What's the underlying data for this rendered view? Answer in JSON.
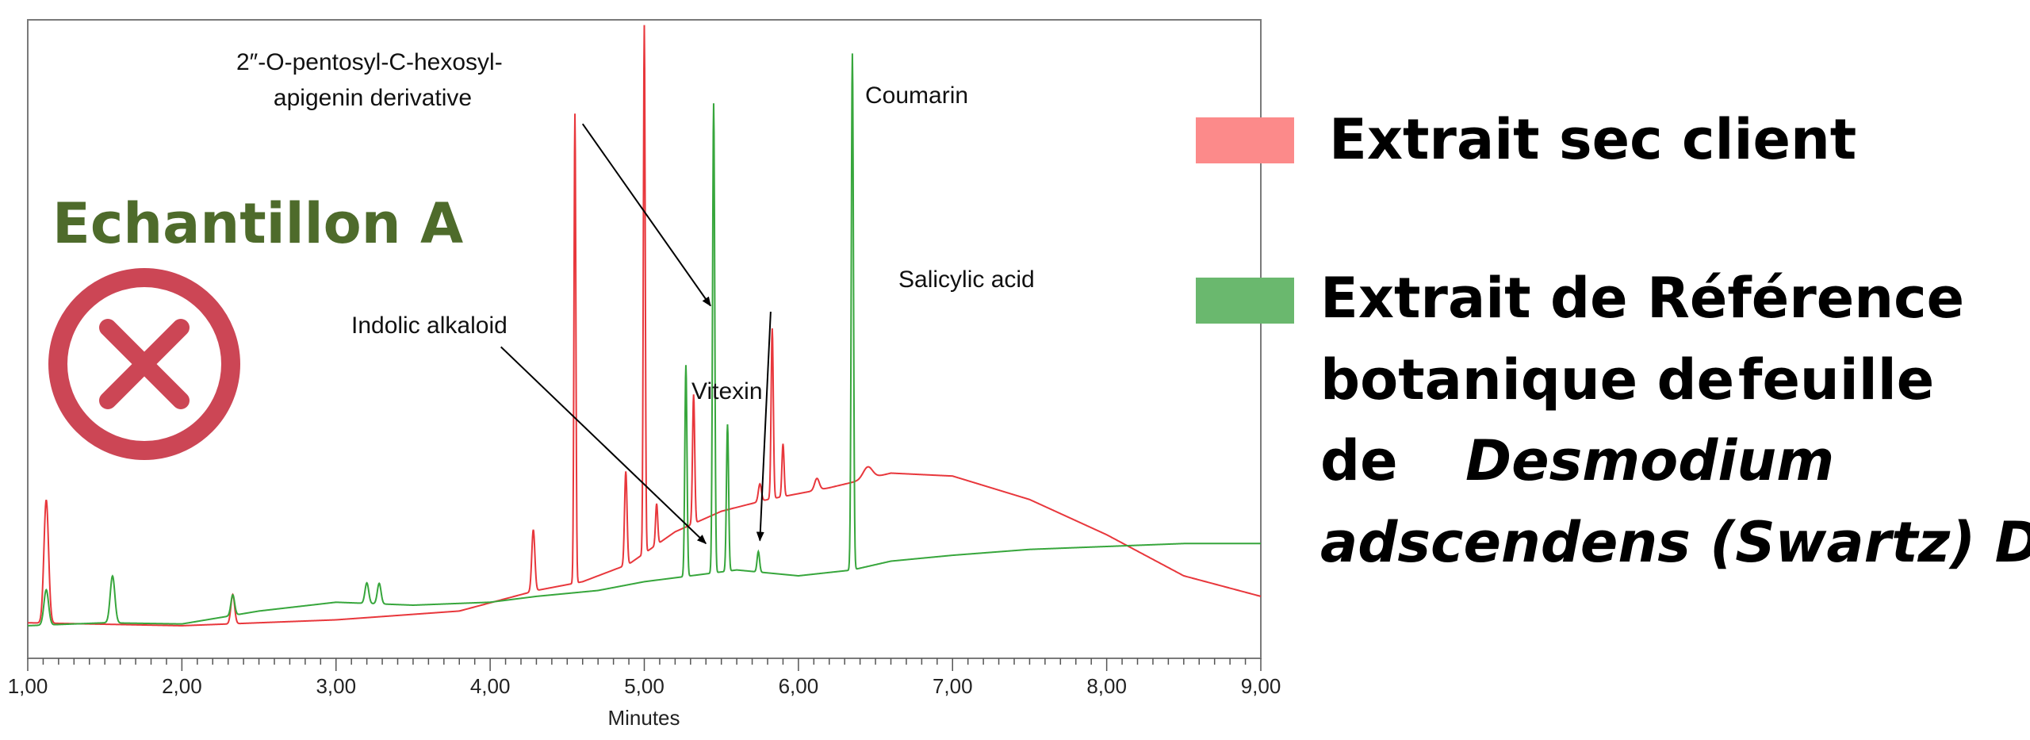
{
  "sample": {
    "title": "Echantillon A",
    "title_color": "#4e6b2b",
    "status_icon": "cross-circle-icon",
    "status_color": "#cc4655"
  },
  "legend": [
    {
      "label_lines": [
        [
          {
            "text": "Extrait sec client",
            "italic": false
          }
        ]
      ],
      "color": "#fc8a8a"
    },
    {
      "label_lines": [
        [
          {
            "text": "Extrait de Référence",
            "italic": false
          }
        ],
        [
          {
            "text": "botanique de",
            "italic": false
          },
          {
            "text": "feuille",
            "italic": false
          }
        ],
        [
          {
            "text": "de",
            "italic": false
          },
          {
            "text": "Desmodium",
            "italic": true
          }
        ],
        [
          {
            "text": "adscendens (Swartz) DC.",
            "italic": true
          }
        ]
      ],
      "color": "#6ab86e"
    }
  ],
  "chart_data": {
    "type": "line",
    "xlabel": "Minutes",
    "xlim": [
      1.0,
      9.0
    ],
    "x_ticks": [
      "1,00",
      "2,00",
      "3,00",
      "4,00",
      "5,00",
      "6,00",
      "7,00",
      "8,00",
      "9,00"
    ],
    "ylim": [
      0,
      100
    ],
    "grid": false,
    "series": [
      {
        "color": "#e8373c",
        "baseline": [
          [
            1.0,
            2
          ],
          [
            2.0,
            1.5
          ],
          [
            3.0,
            2.5
          ],
          [
            3.8,
            4
          ],
          [
            4.3,
            7.5
          ],
          [
            4.6,
            9
          ],
          [
            4.9,
            12
          ],
          [
            5.2,
            17.5
          ],
          [
            5.5,
            21
          ],
          [
            5.8,
            23
          ],
          [
            6.2,
            25
          ],
          [
            6.6,
            27.5
          ],
          [
            7.0,
            27
          ],
          [
            7.5,
            23
          ],
          [
            8.0,
            17
          ],
          [
            8.5,
            10
          ],
          [
            9.0,
            6.5
          ]
        ],
        "peaks": [
          [
            1.12,
            21,
            0.015
          ],
          [
            2.33,
            5,
            0.012
          ],
          [
            4.28,
            10.5,
            0.01
          ],
          [
            4.55,
            80,
            0.006
          ],
          [
            4.88,
            16,
            0.008
          ],
          [
            5.0,
            90,
            0.006
          ],
          [
            5.08,
            7,
            0.007
          ],
          [
            5.32,
            22,
            0.007
          ],
          [
            5.75,
            3,
            0.01
          ],
          [
            5.83,
            29,
            0.007
          ],
          [
            5.9,
            9,
            0.007
          ],
          [
            6.12,
            2,
            0.015
          ],
          [
            6.45,
            2,
            0.03
          ]
        ]
      },
      {
        "color": "#37a63c",
        "baseline": [
          [
            1.0,
            1.5
          ],
          [
            1.5,
            2
          ],
          [
            2.0,
            1.8
          ],
          [
            2.5,
            4
          ],
          [
            3.0,
            5.5
          ],
          [
            3.5,
            5
          ],
          [
            4.0,
            5.5
          ],
          [
            4.3,
            6.5
          ],
          [
            4.7,
            7.5
          ],
          [
            5.0,
            9
          ],
          [
            5.3,
            10
          ],
          [
            5.6,
            11
          ],
          [
            5.8,
            10.5
          ],
          [
            6.0,
            10
          ],
          [
            6.35,
            11
          ],
          [
            6.6,
            12.5
          ],
          [
            7.0,
            13.5
          ],
          [
            7.5,
            14.5
          ],
          [
            8.0,
            15
          ],
          [
            8.5,
            15.5
          ],
          [
            9.0,
            15.5
          ]
        ],
        "peaks": [
          [
            1.12,
            6,
            0.015
          ],
          [
            1.55,
            8,
            0.015
          ],
          [
            2.33,
            3.5,
            0.012
          ],
          [
            3.2,
            3.5,
            0.012
          ],
          [
            3.28,
            3.5,
            0.012
          ],
          [
            5.27,
            36,
            0.007
          ],
          [
            5.45,
            80,
            0.007
          ],
          [
            5.54,
            25,
            0.007
          ],
          [
            5.74,
            3.5,
            0.008
          ],
          [
            6.35,
            88,
            0.007
          ]
        ]
      }
    ],
    "annotations": [
      {
        "text_lines": [
          "2″-O-pentosyl-C-hexosyl-",
          "apigenin derivative"
        ],
        "arrow_from": [
          4.6,
          87
        ],
        "arrow_to": [
          5.43,
          56
        ]
      },
      {
        "text_lines": [
          "Coumarin"
        ],
        "arrow_from": null,
        "arrow_to": null
      },
      {
        "text_lines": [
          "Salicylic acid"
        ],
        "arrow_from": [
          5.82,
          55
        ],
        "arrow_to": [
          5.75,
          16
        ]
      },
      {
        "text_lines": [
          "Indolic alkaloid"
        ],
        "arrow_from": [
          4.07,
          49
        ],
        "arrow_to": [
          5.4,
          15.5
        ]
      },
      {
        "text_lines": [
          "Vitexin"
        ],
        "arrow_from": null,
        "arrow_to": null
      }
    ]
  }
}
